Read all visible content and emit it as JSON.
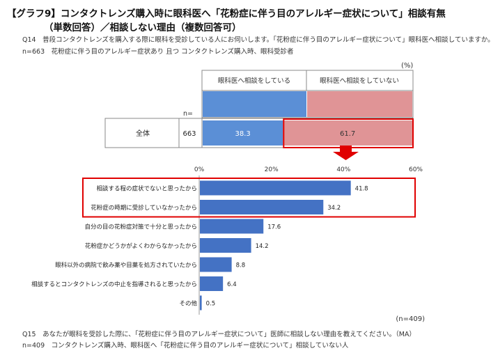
{
  "title_line1": "【グラフ9】コンタクトレンズ購入時に眼科医へ「花粉症に伴う目のアレルギー症状について」相談有無",
  "title_line2": "（単数回答）／相談しない理由（複数回答可）",
  "q14_text": "Q14　普段コンタクトレンズを購入する際に眼科を受診している人にお伺いします。「花粉症に伴う目のアレルギー症状について」眼科医へ相談していますか。（SA）",
  "q14_base": "n=663　花粉症に伴う目のアレルギー症状あり 且つ コンタクトレンズ購入時、眼科受診者",
  "stacked": {
    "unit": "(%)",
    "n_header": "n=",
    "legend": [
      {
        "name": "眼科医へ相談をしている",
        "color": "#5b8fd6"
      },
      {
        "name": "眼科医へ相談をしていない",
        "color": "#e09496"
      }
    ],
    "row": {
      "label": "全体",
      "n": "663",
      "values": [
        38.3,
        61.7
      ],
      "value_labels": [
        "38.3",
        "61.7"
      ]
    }
  },
  "chart_data": {
    "type": "bar",
    "orientation": "horizontal",
    "categories": [
      "相談する程の症状でないと思ったから",
      "花粉症の時期に受診していなかったから",
      "自分の目の花粉症対策で十分と思ったから",
      "花粉症かどうかがよくわからなかったから",
      "眼科以外の病院で飲み薬や目薬を処方されていたから",
      "相談するとコンタクトレンズの中止を指導されると思ったから",
      "その他"
    ],
    "values": [
      41.8,
      34.2,
      17.6,
      14.2,
      8.8,
      6.4,
      0.5
    ],
    "value_labels": [
      "41.8",
      "34.2",
      "17.6",
      "14.2",
      "8.8",
      "6.4",
      "0.5"
    ],
    "xlim": [
      0,
      60
    ],
    "xticks": [
      0,
      20,
      40,
      60
    ],
    "xtick_labels": [
      "0%",
      "20%",
      "40%",
      "60%"
    ],
    "bar_color": "#4472c4",
    "highlight_color": "#e00000",
    "n_label": "(n=409)"
  },
  "q15_text": "Q15　あなたが眼科を受診した際に、「花粉症に伴う目のアレルギー症状について」医師に相談しない理由を教えてください。（MA）",
  "q15_base": "n=409　コンタクトレンズ購入時、眼科医へ「花粉症に伴う目のアレルギー症状について」相談していない人"
}
